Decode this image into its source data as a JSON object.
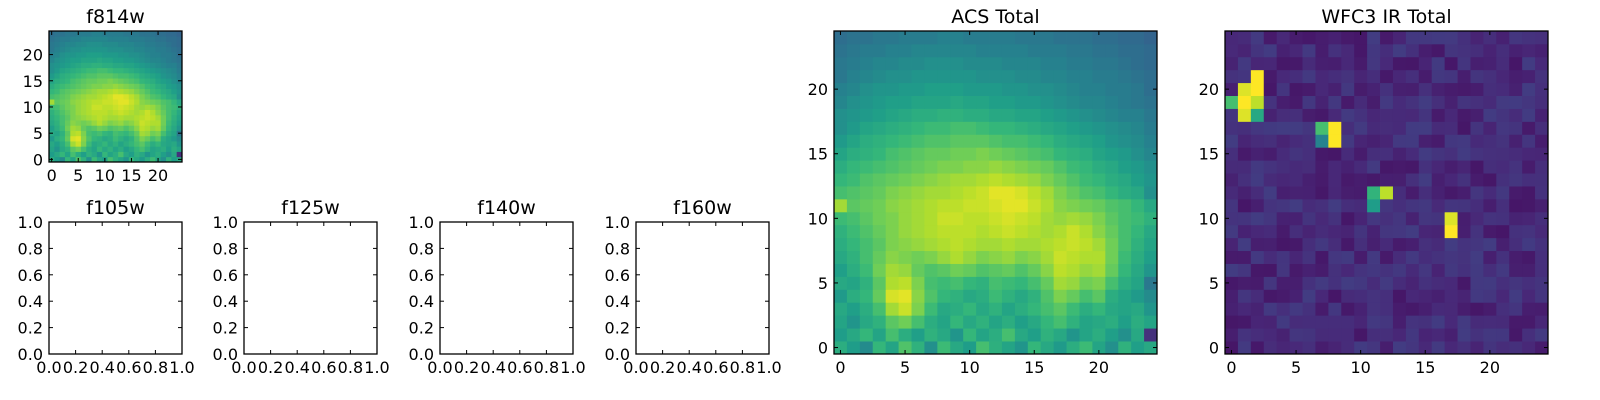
{
  "figure": {
    "background": "#ffffff"
  },
  "colormap": {
    "name": "viridis",
    "stops": [
      "#440154",
      "#482878",
      "#3e4989",
      "#31688e",
      "#26828e",
      "#1f9e89",
      "#35b779",
      "#6ece58",
      "#b5de2b",
      "#fde725"
    ]
  },
  "chart_data": [
    {
      "id": "f814w",
      "type": "heatmap",
      "title": "f814w",
      "xticks": [
        "0",
        "5",
        "10",
        "15",
        "20"
      ],
      "yticks": [
        "0",
        "5",
        "10",
        "15",
        "20"
      ],
      "xlim": [
        -0.5,
        24.5
      ],
      "ylim": [
        -0.5,
        24.5
      ],
      "grid": false,
      "colormap": "viridis",
      "field": "acs"
    },
    {
      "id": "f105w",
      "type": "heatmap",
      "title": "f105w",
      "values": [],
      "xticks": [
        "0.0",
        "0.2",
        "0.4",
        "0.6",
        "0.8",
        "1.0"
      ],
      "yticks": [
        "0.0",
        "0.2",
        "0.4",
        "0.6",
        "0.8",
        "1.0"
      ],
      "xlim": [
        0,
        1
      ],
      "ylim": [
        0,
        1
      ],
      "grid": false
    },
    {
      "id": "f125w",
      "type": "heatmap",
      "title": "f125w",
      "values": [],
      "xticks": [
        "0.0",
        "0.2",
        "0.4",
        "0.6",
        "0.8",
        "1.0"
      ],
      "yticks": [
        "0.0",
        "0.2",
        "0.4",
        "0.6",
        "0.8",
        "1.0"
      ],
      "xlim": [
        0,
        1
      ],
      "ylim": [
        0,
        1
      ],
      "grid": false
    },
    {
      "id": "f140w",
      "type": "heatmap",
      "title": "f140w",
      "values": [],
      "xticks": [
        "0.0",
        "0.2",
        "0.4",
        "0.6",
        "0.8",
        "1.0"
      ],
      "yticks": [
        "0.0",
        "0.2",
        "0.4",
        "0.6",
        "0.8",
        "1.0"
      ],
      "xlim": [
        0,
        1
      ],
      "ylim": [
        0,
        1
      ],
      "grid": false
    },
    {
      "id": "f160w",
      "type": "heatmap",
      "title": "f160w",
      "values": [],
      "xticks": [
        "0.0",
        "0.2",
        "0.4",
        "0.6",
        "0.8",
        "1.0"
      ],
      "yticks": [
        "0.0",
        "0.2",
        "0.4",
        "0.6",
        "0.8",
        "1.0"
      ],
      "xlim": [
        0,
        1
      ],
      "ylim": [
        0,
        1
      ],
      "grid": false
    },
    {
      "id": "acs_total",
      "type": "heatmap",
      "title": "ACS Total",
      "xticks": [
        "0",
        "5",
        "10",
        "15",
        "20"
      ],
      "yticks": [
        "0",
        "5",
        "10",
        "15",
        "20"
      ],
      "xlim": [
        -0.5,
        24.5
      ],
      "ylim": [
        -0.5,
        24.5
      ],
      "grid": false,
      "colormap": "viridis",
      "field": "acs",
      "values": [
        [
          0.62,
          0.55,
          0.48,
          0.66,
          0.58,
          0.72,
          0.64,
          0.5,
          0.68,
          0.6,
          0.55,
          0.7,
          0.63,
          0.58,
          0.52,
          0.66,
          0.6,
          0.54,
          0.62,
          0.68,
          0.58,
          0.5,
          0.64,
          0.56,
          0.6
        ],
        [
          0.55,
          0.6,
          0.66,
          0.58,
          0.7,
          0.62,
          0.56,
          0.64,
          0.6,
          0.52,
          0.66,
          0.58,
          0.62,
          0.7,
          0.6,
          0.56,
          0.64,
          0.6,
          0.52,
          0.58,
          0.62,
          0.56,
          0.5,
          0.6,
          0.14
        ],
        [
          0.58,
          0.52,
          0.6,
          0.64,
          0.74,
          0.78,
          0.7,
          0.62,
          0.58,
          0.66,
          0.6,
          0.64,
          0.58,
          0.62,
          0.56,
          0.6,
          0.66,
          0.7,
          0.64,
          0.58,
          0.6,
          0.62,
          0.56,
          0.62,
          0.58
        ],
        [
          0.6,
          0.56,
          0.62,
          0.7,
          0.86,
          0.92,
          0.8,
          0.68,
          0.6,
          0.62,
          0.66,
          0.6,
          0.64,
          0.58,
          0.62,
          0.66,
          0.7,
          0.74,
          0.68,
          0.62,
          0.66,
          0.6,
          0.58,
          0.6,
          0.52
        ],
        [
          0.54,
          0.62,
          0.66,
          0.76,
          0.94,
          0.96,
          0.82,
          0.72,
          0.66,
          0.64,
          0.6,
          0.62,
          0.68,
          0.64,
          0.6,
          0.64,
          0.72,
          0.8,
          0.76,
          0.7,
          0.74,
          0.62,
          0.58,
          0.54,
          0.48
        ],
        [
          0.6,
          0.58,
          0.64,
          0.74,
          0.88,
          0.9,
          0.8,
          0.7,
          0.68,
          0.7,
          0.66,
          0.64,
          0.7,
          0.68,
          0.66,
          0.7,
          0.76,
          0.86,
          0.84,
          0.78,
          0.8,
          0.7,
          0.62,
          0.58,
          0.4
        ],
        [
          0.56,
          0.62,
          0.68,
          0.78,
          0.86,
          0.84,
          0.76,
          0.72,
          0.74,
          0.78,
          0.76,
          0.72,
          0.74,
          0.76,
          0.72,
          0.76,
          0.82,
          0.9,
          0.88,
          0.84,
          0.86,
          0.76,
          0.66,
          0.6,
          0.52
        ],
        [
          0.6,
          0.64,
          0.7,
          0.76,
          0.82,
          0.8,
          0.78,
          0.8,
          0.84,
          0.88,
          0.84,
          0.8,
          0.82,
          0.84,
          0.8,
          0.82,
          0.86,
          0.92,
          0.9,
          0.88,
          0.88,
          0.78,
          0.68,
          0.62,
          0.56
        ],
        [
          0.62,
          0.66,
          0.7,
          0.74,
          0.8,
          0.82,
          0.84,
          0.86,
          0.88,
          0.9,
          0.88,
          0.86,
          0.86,
          0.88,
          0.86,
          0.86,
          0.88,
          0.9,
          0.92,
          0.9,
          0.86,
          0.78,
          0.7,
          0.64,
          0.58
        ],
        [
          0.64,
          0.68,
          0.72,
          0.76,
          0.8,
          0.84,
          0.86,
          0.88,
          0.9,
          0.9,
          0.9,
          0.88,
          0.9,
          0.92,
          0.9,
          0.88,
          0.86,
          0.88,
          0.92,
          0.88,
          0.82,
          0.76,
          0.7,
          0.66,
          0.6
        ],
        [
          0.68,
          0.7,
          0.74,
          0.78,
          0.8,
          0.84,
          0.86,
          0.88,
          0.92,
          0.92,
          0.9,
          0.9,
          0.92,
          0.94,
          0.92,
          0.9,
          0.86,
          0.84,
          0.86,
          0.84,
          0.8,
          0.74,
          0.7,
          0.68,
          0.64
        ],
        [
          0.86,
          0.74,
          0.76,
          0.78,
          0.82,
          0.84,
          0.86,
          0.88,
          0.9,
          0.9,
          0.92,
          0.92,
          0.94,
          0.96,
          0.96,
          0.92,
          0.88,
          0.82,
          0.8,
          0.78,
          0.76,
          0.72,
          0.7,
          0.66,
          0.6
        ],
        [
          0.7,
          0.72,
          0.74,
          0.76,
          0.8,
          0.82,
          0.84,
          0.86,
          0.86,
          0.88,
          0.9,
          0.92,
          0.96,
          0.96,
          0.94,
          0.9,
          0.86,
          0.8,
          0.76,
          0.72,
          0.7,
          0.66,
          0.62,
          0.6,
          0.5
        ],
        [
          0.66,
          0.68,
          0.72,
          0.74,
          0.76,
          0.78,
          0.8,
          0.82,
          0.84,
          0.86,
          0.86,
          0.88,
          0.9,
          0.88,
          0.86,
          0.84,
          0.8,
          0.76,
          0.72,
          0.68,
          0.66,
          0.62,
          0.6,
          0.56,
          0.52
        ],
        [
          0.62,
          0.66,
          0.68,
          0.7,
          0.72,
          0.74,
          0.76,
          0.78,
          0.8,
          0.8,
          0.82,
          0.82,
          0.84,
          0.82,
          0.8,
          0.78,
          0.76,
          0.72,
          0.68,
          0.66,
          0.62,
          0.6,
          0.56,
          0.54,
          0.5
        ],
        [
          0.58,
          0.62,
          0.64,
          0.66,
          0.7,
          0.72,
          0.74,
          0.76,
          0.76,
          0.78,
          0.78,
          0.8,
          0.78,
          0.76,
          0.74,
          0.72,
          0.7,
          0.66,
          0.64,
          0.62,
          0.58,
          0.56,
          0.54,
          0.5,
          0.46
        ],
        [
          0.54,
          0.58,
          0.62,
          0.64,
          0.66,
          0.68,
          0.7,
          0.72,
          0.72,
          0.74,
          0.74,
          0.74,
          0.72,
          0.7,
          0.7,
          0.68,
          0.66,
          0.62,
          0.6,
          0.58,
          0.56,
          0.52,
          0.5,
          0.48,
          0.44
        ],
        [
          0.5,
          0.54,
          0.58,
          0.6,
          0.62,
          0.64,
          0.66,
          0.68,
          0.68,
          0.7,
          0.7,
          0.68,
          0.66,
          0.66,
          0.64,
          0.62,
          0.6,
          0.58,
          0.56,
          0.54,
          0.52,
          0.5,
          0.48,
          0.46,
          0.42
        ],
        [
          0.5,
          0.52,
          0.54,
          0.56,
          0.58,
          0.6,
          0.62,
          0.62,
          0.64,
          0.64,
          0.62,
          0.62,
          0.6,
          0.6,
          0.58,
          0.58,
          0.56,
          0.54,
          0.52,
          0.5,
          0.48,
          0.46,
          0.44,
          0.44,
          0.4
        ],
        [
          0.46,
          0.5,
          0.52,
          0.54,
          0.56,
          0.56,
          0.58,
          0.58,
          0.58,
          0.6,
          0.58,
          0.58,
          0.56,
          0.56,
          0.54,
          0.54,
          0.52,
          0.5,
          0.48,
          0.46,
          0.46,
          0.44,
          0.42,
          0.4,
          0.38
        ],
        [
          0.44,
          0.46,
          0.5,
          0.52,
          0.52,
          0.54,
          0.54,
          0.56,
          0.56,
          0.56,
          0.54,
          0.54,
          0.54,
          0.52,
          0.52,
          0.5,
          0.5,
          0.48,
          0.46,
          0.44,
          0.44,
          0.42,
          0.42,
          0.4,
          0.36
        ],
        [
          0.4,
          0.44,
          0.46,
          0.48,
          0.5,
          0.5,
          0.52,
          0.52,
          0.52,
          0.52,
          0.52,
          0.5,
          0.5,
          0.5,
          0.48,
          0.48,
          0.46,
          0.46,
          0.44,
          0.44,
          0.42,
          0.42,
          0.4,
          0.38,
          0.36
        ],
        [
          0.4,
          0.42,
          0.44,
          0.46,
          0.46,
          0.48,
          0.48,
          0.5,
          0.5,
          0.5,
          0.48,
          0.48,
          0.48,
          0.46,
          0.46,
          0.46,
          0.44,
          0.44,
          0.42,
          0.42,
          0.4,
          0.4,
          0.38,
          0.36,
          0.34
        ],
        [
          0.38,
          0.4,
          0.42,
          0.42,
          0.44,
          0.44,
          0.46,
          0.46,
          0.46,
          0.46,
          0.46,
          0.44,
          0.44,
          0.44,
          0.44,
          0.42,
          0.42,
          0.42,
          0.4,
          0.4,
          0.38,
          0.38,
          0.36,
          0.36,
          0.34
        ],
        [
          0.36,
          0.38,
          0.38,
          0.4,
          0.4,
          0.42,
          0.42,
          0.42,
          0.44,
          0.44,
          0.42,
          0.42,
          0.42,
          0.42,
          0.4,
          0.4,
          0.4,
          0.38,
          0.38,
          0.38,
          0.36,
          0.36,
          0.34,
          0.34,
          0.32
        ]
      ]
    },
    {
      "id": "wfc3_ir_total",
      "type": "heatmap",
      "title": "WFC3 IR Total",
      "xticks": [
        "0",
        "5",
        "10",
        "15",
        "20"
      ],
      "yticks": [
        "0",
        "5",
        "10",
        "15",
        "20"
      ],
      "xlim": [
        -0.5,
        24.5
      ],
      "ylim": [
        -0.5,
        24.5
      ],
      "grid": false,
      "colormap": "viridis",
      "background_level": 0.12,
      "bright_pixels": [
        {
          "x": 2,
          "y": 21,
          "value": 1.0
        },
        {
          "x": 1,
          "y": 20,
          "value": 0.95
        },
        {
          "x": 2,
          "y": 20,
          "value": 1.0
        },
        {
          "x": 0,
          "y": 19,
          "value": 0.7
        },
        {
          "x": 1,
          "y": 19,
          "value": 1.0
        },
        {
          "x": 2,
          "y": 19,
          "value": 0.9
        },
        {
          "x": 1,
          "y": 18,
          "value": 0.95
        },
        {
          "x": 2,
          "y": 18,
          "value": 0.6
        },
        {
          "x": 7,
          "y": 17,
          "value": 0.7
        },
        {
          "x": 8,
          "y": 17,
          "value": 1.0
        },
        {
          "x": 8,
          "y": 16,
          "value": 1.0
        },
        {
          "x": 7,
          "y": 16,
          "value": 0.45
        },
        {
          "x": 11,
          "y": 12,
          "value": 0.65
        },
        {
          "x": 12,
          "y": 12,
          "value": 0.9
        },
        {
          "x": 11,
          "y": 11,
          "value": 0.55
        },
        {
          "x": 17,
          "y": 10,
          "value": 0.95
        },
        {
          "x": 17,
          "y": 9,
          "value": 1.0
        }
      ]
    }
  ]
}
